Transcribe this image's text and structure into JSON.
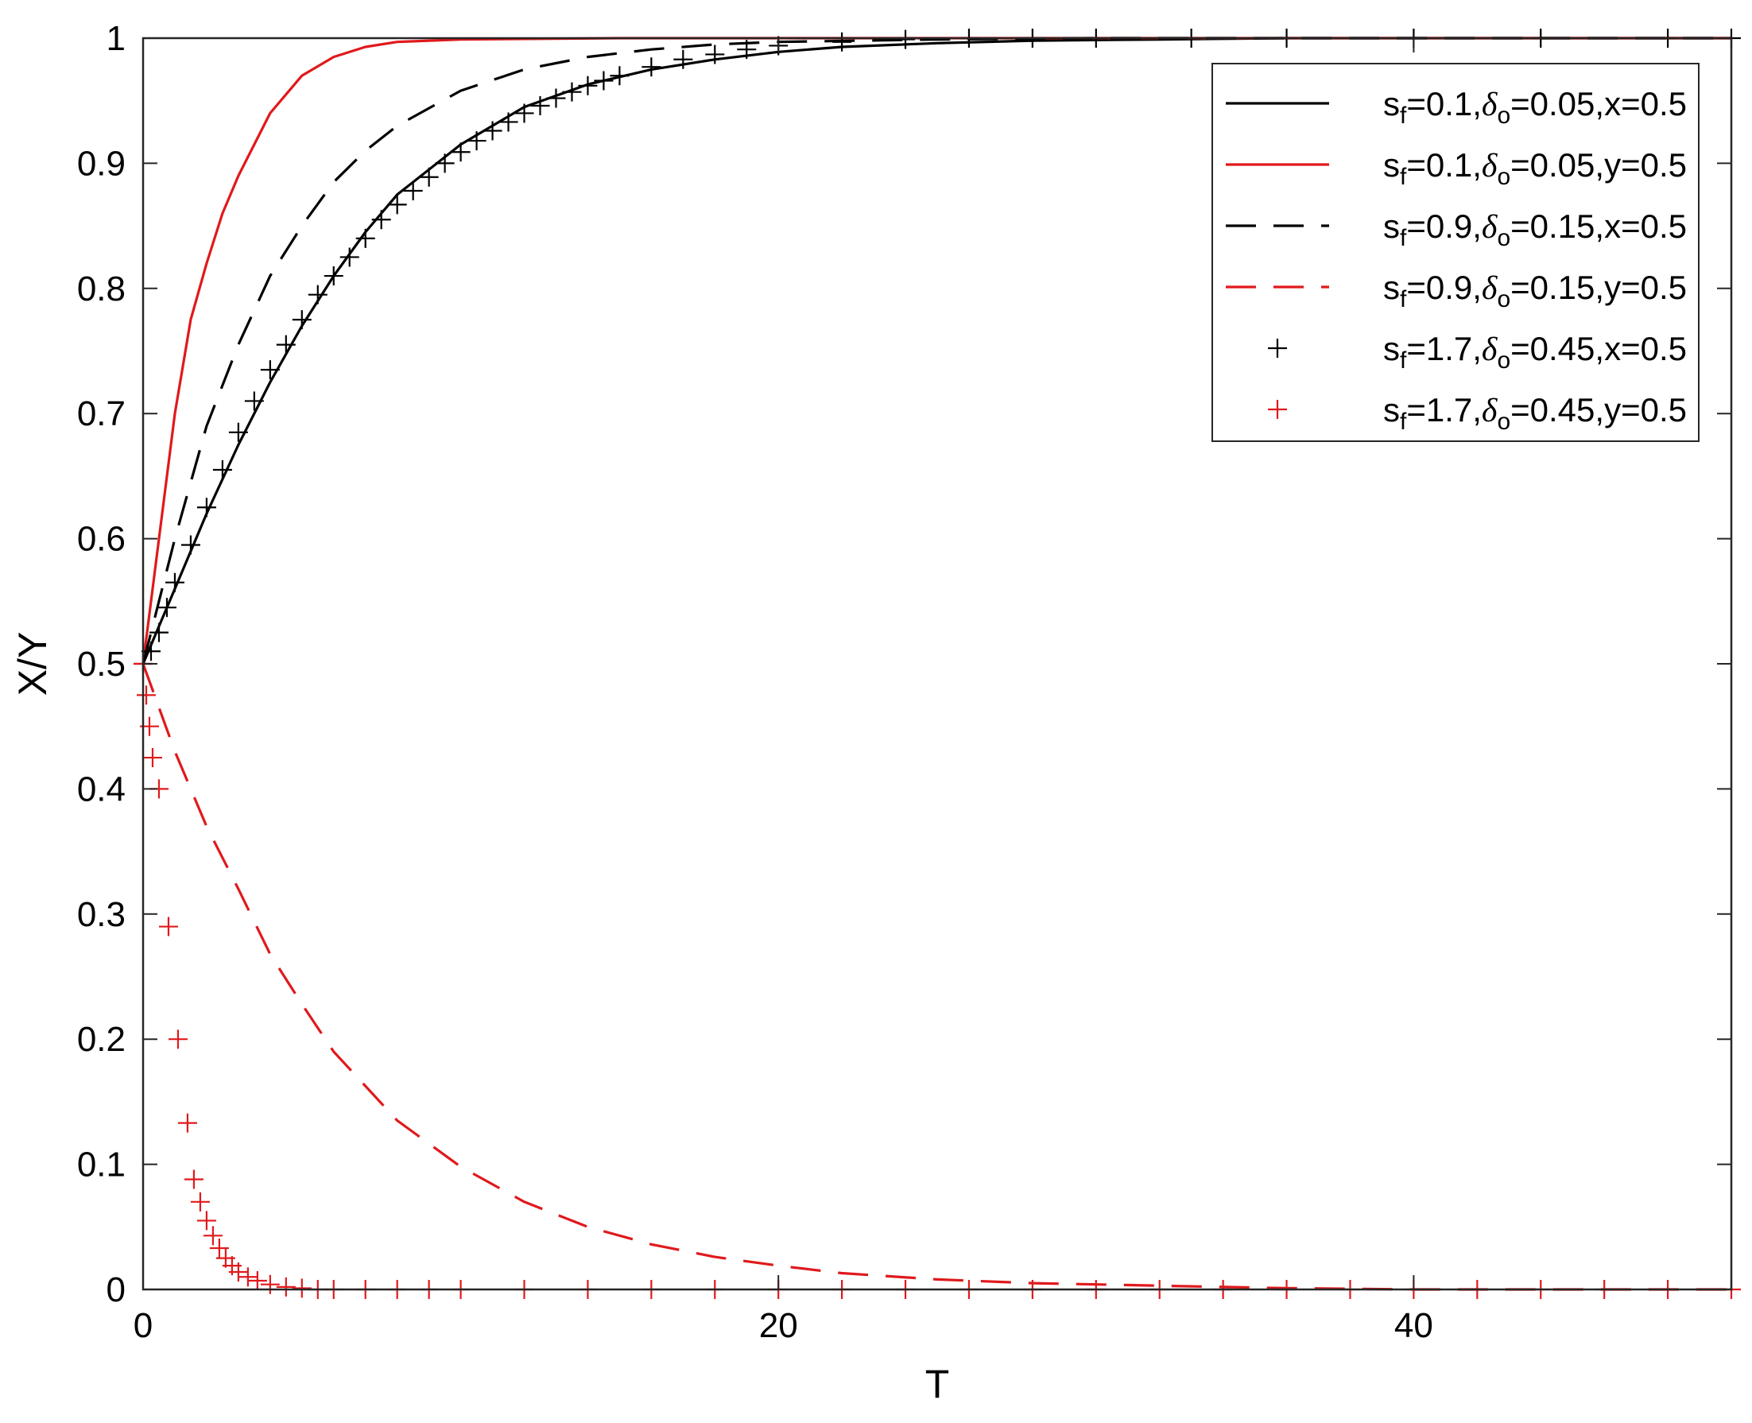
{
  "chart_data": {
    "type": "line",
    "xlabel": "T",
    "ylabel": "X/Y",
    "xlim": [
      0,
      50
    ],
    "ylim": [
      0,
      1
    ],
    "xticks": [
      "0",
      "20",
      "40"
    ],
    "yticks": [
      "0",
      "0.1",
      "0.2",
      "0.3",
      "0.4",
      "0.5",
      "0.6",
      "0.7",
      "0.8",
      "0.9",
      "1"
    ],
    "legend_position": "top-right",
    "grid": false,
    "series": [
      {
        "name": "sf=0.1,δo=0.05,x=0.5",
        "label": {
          "sf": "0.1",
          "delta": "0.05",
          "tail": "x=0.5"
        },
        "color": "#000000",
        "style": "solid",
        "x": [
          0,
          1,
          2,
          3,
          4,
          5,
          6,
          7,
          8,
          10,
          12,
          14,
          16,
          18,
          20,
          22,
          25,
          28,
          32,
          36,
          40,
          45,
          50
        ],
        "y": [
          0.5,
          0.56,
          0.62,
          0.675,
          0.725,
          0.77,
          0.81,
          0.845,
          0.875,
          0.915,
          0.945,
          0.963,
          0.975,
          0.983,
          0.989,
          0.993,
          0.996,
          0.998,
          0.999,
          1.0,
          1.0,
          1.0,
          1.0
        ]
      },
      {
        "name": "sf=0.1,δo=0.05,y=0.5",
        "label": {
          "sf": "0.1",
          "delta": "0.05",
          "tail": "y=0.5"
        },
        "color": "#e0191c",
        "style": "solid",
        "x": [
          0,
          0.5,
          1,
          1.5,
          2,
          2.5,
          3,
          4,
          5,
          6,
          7,
          8,
          10,
          15,
          20,
          30,
          40,
          50
        ],
        "y": [
          0.5,
          0.6,
          0.7,
          0.775,
          0.82,
          0.86,
          0.89,
          0.94,
          0.97,
          0.985,
          0.993,
          0.997,
          0.999,
          1.0,
          1.0,
          1.0,
          1.0,
          1.0
        ]
      },
      {
        "name": "sf=0.9,δo=0.15,x=0.5",
        "label": {
          "sf": "0.9",
          "delta": "0.15",
          "tail": "x=0.5"
        },
        "color": "#000000",
        "style": "dashed",
        "x": [
          0,
          1,
          2,
          3,
          4,
          5,
          6,
          7,
          8,
          10,
          12,
          14,
          16,
          18,
          20,
          25,
          30,
          40,
          50
        ],
        "y": [
          0.5,
          0.6,
          0.69,
          0.755,
          0.81,
          0.85,
          0.885,
          0.91,
          0.93,
          0.958,
          0.975,
          0.985,
          0.991,
          0.995,
          0.997,
          0.999,
          1.0,
          1.0,
          1.0
        ]
      },
      {
        "name": "sf=0.9,δo=0.15,y=0.5",
        "label": {
          "sf": "0.9",
          "delta": "0.15",
          "tail": "y=0.5"
        },
        "color": "#e0191c",
        "style": "dashed",
        "x": [
          0,
          1,
          2,
          3,
          4,
          5,
          6,
          8,
          10,
          12,
          14,
          16,
          18,
          20,
          22,
          25,
          28,
          32,
          36,
          40,
          45,
          50
        ],
        "y": [
          0.5,
          0.43,
          0.37,
          0.32,
          0.268,
          0.228,
          0.19,
          0.135,
          0.098,
          0.07,
          0.05,
          0.036,
          0.026,
          0.019,
          0.013,
          0.008,
          0.005,
          0.003,
          0.001,
          0.0,
          0.0,
          0.0
        ]
      },
      {
        "name": "sf=1.7,δo=0.45,x=0.5",
        "label": {
          "sf": "1.7",
          "delta": "0.45",
          "tail": "x=0.5"
        },
        "color": "#000000",
        "style": "plus",
        "x": [
          0,
          0.25,
          0.5,
          0.75,
          1,
          1.5,
          2,
          2.5,
          3,
          3.5,
          4,
          4.5,
          5,
          5.5,
          6,
          6.5,
          7,
          7.5,
          8,
          8.5,
          9,
          9.5,
          10,
          10.5,
          11,
          11.5,
          12,
          12.5,
          13,
          13.5,
          14,
          14.5,
          15,
          16,
          17,
          18,
          19,
          20,
          22,
          24,
          26,
          28,
          30,
          33,
          36,
          40,
          44,
          48,
          50
        ],
        "y": [
          0.5,
          0.51,
          0.525,
          0.545,
          0.565,
          0.595,
          0.625,
          0.655,
          0.685,
          0.71,
          0.735,
          0.755,
          0.775,
          0.795,
          0.81,
          0.825,
          0.84,
          0.855,
          0.867,
          0.878,
          0.889,
          0.9,
          0.909,
          0.918,
          0.926,
          0.933,
          0.94,
          0.946,
          0.952,
          0.957,
          0.962,
          0.966,
          0.97,
          0.977,
          0.983,
          0.987,
          0.991,
          0.994,
          0.997,
          0.999,
          1.0,
          1.0,
          1.0,
          1.0,
          1.0,
          1.0,
          1.0,
          1.0,
          1.0
        ]
      },
      {
        "name": "sf=1.7,δo=0.45,y=0.5",
        "label": {
          "sf": "1.7",
          "delta": "0.45",
          "tail": "y=0.5"
        },
        "color": "#e0191c",
        "style": "plus",
        "x": [
          0,
          0.1,
          0.2,
          0.3,
          0.5,
          0.8,
          1.1,
          1.4,
          1.6,
          1.8,
          2.0,
          2.2,
          2.4,
          2.6,
          2.8,
          3.0,
          3.3,
          3.6,
          4.0,
          4.5,
          5,
          5.5,
          6,
          7,
          8,
          9,
          10,
          12,
          14,
          16,
          18,
          20,
          22,
          24,
          26,
          28,
          30,
          32,
          34,
          36,
          38,
          40,
          42,
          44,
          46,
          48,
          50
        ],
        "y": [
          0.5,
          0.475,
          0.45,
          0.425,
          0.4,
          0.29,
          0.2,
          0.133,
          0.088,
          0.07,
          0.055,
          0.043,
          0.033,
          0.025,
          0.019,
          0.014,
          0.01,
          0.007,
          0.004,
          0.002,
          0.001,
          0.0,
          0.0,
          0.0,
          0.0,
          0.0,
          0.0,
          0.0,
          0.0,
          0.0,
          0.0,
          0.0,
          0.0,
          0.0,
          0.0,
          0.0,
          0.0,
          0.0,
          0.0,
          0.0,
          0.0,
          0.0,
          0.0,
          0.0,
          0.0,
          0.0,
          0.0
        ]
      }
    ]
  }
}
